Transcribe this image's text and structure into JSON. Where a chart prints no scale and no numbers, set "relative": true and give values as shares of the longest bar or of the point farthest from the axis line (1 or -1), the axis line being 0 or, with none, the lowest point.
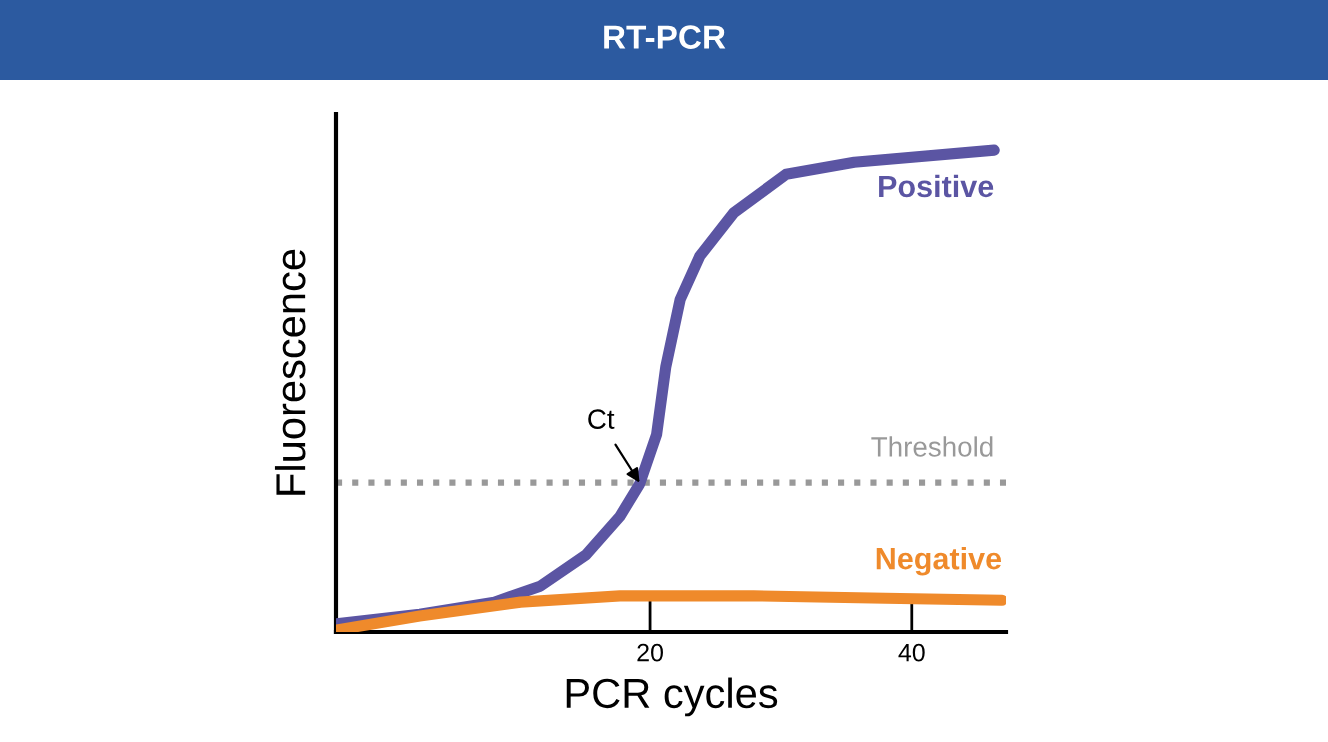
{
  "chart_data": {
    "type": "line",
    "title": "RT-PCR",
    "xlabel": "PCR cycles",
    "ylabel": "Fluorescence",
    "relative": true,
    "xlim": [
      -4,
      47.2
    ],
    "xticks": [
      20,
      40
    ],
    "grid": false,
    "legend": false,
    "marker": "none",
    "line_style": "solid",
    "x": [
      -4,
      2.4,
      8.1,
      11.6,
      15.1,
      17.7,
      19.2,
      20.5,
      21.2,
      22.3,
      23.8,
      26.4,
      30.4,
      35.6,
      46.3
    ],
    "series": [
      {
        "name": "Positive",
        "color": "#5b55a3",
        "values": [
          0.017,
          0.037,
          0.062,
          0.095,
          0.16,
          0.24,
          0.307,
          0.41,
          0.55,
          0.69,
          0.78,
          0.87,
          0.95,
          0.975,
          1.0
        ]
      },
      {
        "name": "Negative",
        "color": "#ef8a2b",
        "x": [
          -4,
          2.4,
          10.1,
          17.7,
          27.9,
          38,
          46.9
        ],
        "values": [
          0.004,
          0.033,
          0.062,
          0.075,
          0.075,
          0.07,
          0.066
        ]
      }
    ],
    "ref_lines": [
      {
        "axis": "y",
        "value": 0.31,
        "label": "Threshold",
        "color": "#999999",
        "line_style": "dotted"
      }
    ],
    "annotations": [
      {
        "text": "Ct",
        "x": 19.2,
        "y": 0.31
      }
    ]
  }
}
